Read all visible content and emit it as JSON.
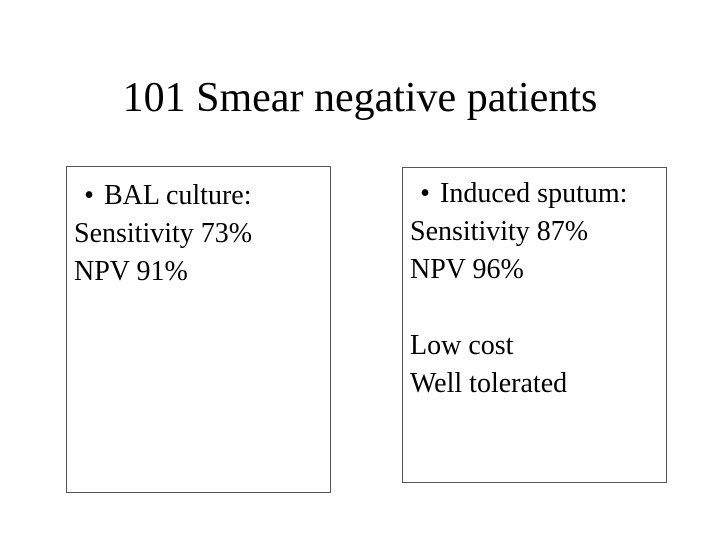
{
  "slide": {
    "title": "101 Smear negative patients"
  },
  "left_box": {
    "bullet": "•",
    "heading": "BAL culture:",
    "lines": [
      "Sensitivity 73%",
      "NPV 91%"
    ]
  },
  "right_box": {
    "bullet": "•",
    "heading": "Induced sputum:",
    "lines": [
      "Sensitivity 87%",
      "NPV 96%"
    ],
    "extra_lines": [
      "Low cost",
      "Well tolerated"
    ]
  }
}
